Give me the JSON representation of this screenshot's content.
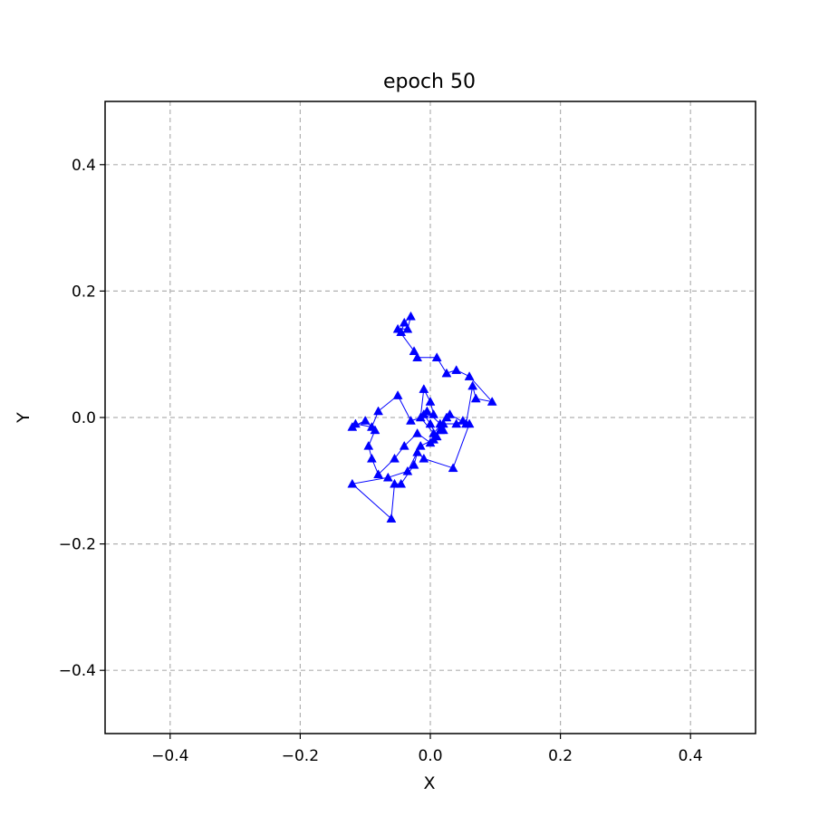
{
  "chart_data": {
    "type": "line",
    "title": "epoch   50",
    "xlabel": "X",
    "ylabel": "Y",
    "xlim": [
      -0.5,
      0.5
    ],
    "ylim": [
      -0.5,
      0.5
    ],
    "xticks": [
      -0.4,
      -0.2,
      0.0,
      0.2,
      0.4
    ],
    "yticks": [
      -0.4,
      -0.2,
      0.0,
      0.2,
      0.4
    ],
    "xtick_labels": [
      "−0.4",
      "−0.2",
      "0.0",
      "0.2",
      "0.4"
    ],
    "ytick_labels": [
      "−0.4",
      "−0.2",
      "0.0",
      "0.2",
      "0.4"
    ],
    "grid": true,
    "grid_style": "dashed",
    "marker": "triangle-up",
    "series": [
      {
        "color": "#0000ff",
        "points": [
          [
            -0.045,
            0.135
          ],
          [
            -0.04,
            0.15
          ],
          [
            -0.03,
            0.16
          ],
          [
            -0.035,
            0.14
          ],
          [
            -0.05,
            0.14
          ],
          [
            -0.025,
            0.105
          ],
          [
            -0.02,
            0.095
          ],
          [
            0.01,
            0.095
          ],
          [
            0.025,
            0.07
          ],
          [
            0.04,
            0.075
          ],
          [
            0.06,
            0.065
          ],
          [
            0.095,
            0.025
          ],
          [
            0.07,
            0.03
          ],
          [
            0.065,
            0.05
          ],
          [
            0.055,
            -0.01
          ],
          [
            0.03,
            0.005
          ],
          [
            0.005,
            -0.025
          ],
          [
            -0.015,
            0.0
          ],
          [
            -0.01,
            0.045
          ],
          [
            0.0,
            0.025
          ],
          [
            0.005,
            0.005
          ],
          [
            -0.03,
            -0.005
          ],
          [
            -0.05,
            0.035
          ],
          [
            -0.08,
            0.01
          ],
          [
            -0.09,
            -0.015
          ],
          [
            -0.115,
            -0.01
          ],
          [
            -0.12,
            -0.015
          ],
          [
            -0.1,
            -0.005
          ],
          [
            -0.085,
            -0.02
          ],
          [
            -0.095,
            -0.045
          ],
          [
            -0.09,
            -0.065
          ],
          [
            -0.08,
            -0.09
          ],
          [
            -0.055,
            -0.065
          ],
          [
            -0.04,
            -0.045
          ],
          [
            -0.02,
            -0.025
          ],
          [
            0.0,
            -0.04
          ],
          [
            0.02,
            -0.01
          ],
          [
            0.04,
            -0.01
          ],
          [
            0.05,
            -0.005
          ],
          [
            0.06,
            -0.01
          ],
          [
            0.035,
            -0.08
          ],
          [
            -0.01,
            -0.065
          ],
          [
            -0.02,
            -0.055
          ],
          [
            -0.025,
            -0.075
          ],
          [
            -0.045,
            -0.105
          ],
          [
            -0.055,
            -0.105
          ],
          [
            -0.06,
            -0.16
          ],
          [
            -0.12,
            -0.105
          ],
          [
            -0.065,
            -0.095
          ],
          [
            -0.035,
            -0.085
          ],
          [
            -0.015,
            -0.045
          ],
          [
            0.005,
            -0.035
          ],
          [
            0.015,
            -0.02
          ],
          [
            0.025,
            0.0
          ],
          [
            0.01,
            -0.03
          ],
          [
            0.0,
            -0.01
          ],
          [
            -0.01,
            0.005
          ],
          [
            -0.005,
            0.01
          ],
          [
            0.015,
            -0.01
          ],
          [
            0.02,
            -0.02
          ]
        ]
      }
    ]
  }
}
